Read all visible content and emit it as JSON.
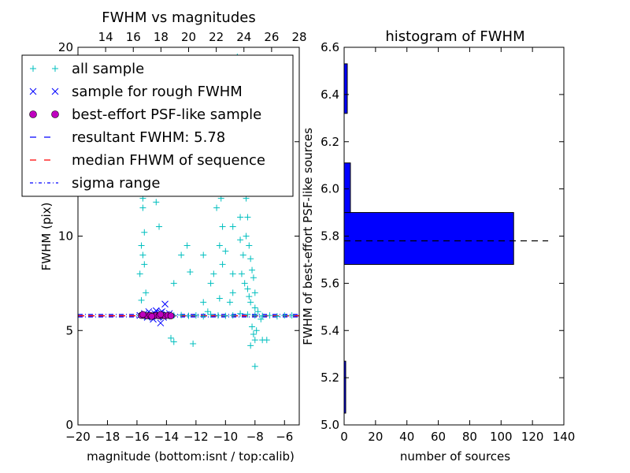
{
  "chart_data": [
    {
      "type": "scatter",
      "title": "FWHM vs magnitudes",
      "xlabel": "magnitude (bottom:isnt / top:calib)",
      "ylabel": "FWHM (pix)",
      "xlim": [
        -20,
        -5
      ],
      "ylim": [
        0,
        20
      ],
      "xticks": [
        -20,
        -18,
        -16,
        -14,
        -12,
        -10,
        -8,
        -6
      ],
      "xtick_labels": [
        "−20",
        "−18",
        "−16",
        "−14",
        "−12",
        "−10",
        "−8",
        "−6"
      ],
      "yticks": [
        0,
        5,
        10,
        15,
        20
      ],
      "ytick_labels": [
        "0",
        "5",
        "10",
        "15",
        "20"
      ],
      "top_xlim": [
        12,
        28
      ],
      "top_xticks": [
        14,
        16,
        18,
        20,
        22,
        24,
        26,
        28
      ],
      "top_xtick_labels": [
        "14",
        "16",
        "18",
        "20",
        "22",
        "24",
        "26",
        "28"
      ],
      "grid": false,
      "legend_placement": "upper-left",
      "legend": [
        {
          "label": "all sample",
          "marker": "+",
          "color": "#00bfbf"
        },
        {
          "label": "sample for rough FWHM",
          "marker": "x",
          "color": "#0000ff"
        },
        {
          "label": "best-effort PSF-like sample",
          "marker": "o",
          "color": "#bf00bf"
        },
        {
          "label": "resultant FWHM: 5.78",
          "marker": "dashed",
          "color": "#0000ff"
        },
        {
          "label": "median FHWM of sequence",
          "marker": "dashed",
          "color": "#ff0000"
        },
        {
          "label": "sigma range",
          "marker": "dashdot",
          "color": "#0000ff"
        }
      ],
      "series": [
        {
          "name": "all sample",
          "color": "#00bfbf",
          "points": [
            [
              -15.8,
              5.8
            ],
            [
              -15.5,
              5.75
            ],
            [
              -15.2,
              5.8
            ],
            [
              -14.8,
              5.85
            ],
            [
              -14.5,
              5.78
            ],
            [
              -14.2,
              5.8
            ],
            [
              -13.8,
              5.75
            ],
            [
              -13.5,
              5.8
            ],
            [
              -13.0,
              5.82
            ],
            [
              -12.5,
              5.78
            ],
            [
              -12.0,
              5.8
            ],
            [
              -11.5,
              5.75
            ],
            [
              -11.0,
              5.85
            ],
            [
              -10.5,
              5.8
            ],
            [
              -10.0,
              5.78
            ],
            [
              -9.5,
              5.8
            ],
            [
              -9.0,
              5.9
            ],
            [
              -8.5,
              5.85
            ],
            [
              -8.0,
              5.8
            ],
            [
              -7.5,
              5.78
            ],
            [
              -7.0,
              5.8
            ],
            [
              -6.5,
              5.75
            ],
            [
              -6.0,
              5.8
            ],
            [
              -5.5,
              5.8
            ],
            [
              -15.8,
              8.0
            ],
            [
              -15.7,
              9.5
            ],
            [
              -15.6,
              11.5
            ],
            [
              -15.7,
              12.5
            ],
            [
              -15.5,
              13.2
            ],
            [
              -15.6,
              14.5
            ],
            [
              -15.6,
              16.0
            ],
            [
              -15.4,
              7.0
            ],
            [
              -15.5,
              10.2
            ],
            [
              -15.7,
              6.6
            ],
            [
              -15.6,
              9.0
            ],
            [
              -15.5,
              8.5
            ],
            [
              -15.6,
              12.0
            ],
            [
              -14.5,
              12.5
            ],
            [
              -14.3,
              15.3
            ],
            [
              -14.6,
              13.5
            ],
            [
              -14.4,
              14.5
            ],
            [
              -14.4,
              16.5
            ],
            [
              -14.5,
              10.5
            ],
            [
              -14.7,
              11.8
            ],
            [
              -13.7,
              4.6
            ],
            [
              -13.5,
              4.4
            ],
            [
              -12.2,
              4.3
            ],
            [
              -12.6,
              9.5
            ],
            [
              -13.0,
              9.0
            ],
            [
              -11.5,
              9.0
            ],
            [
              -10.6,
              15.0
            ],
            [
              -10.5,
              13.0
            ],
            [
              -10.3,
              12.0
            ],
            [
              -10.6,
              11.5
            ],
            [
              -10.2,
              10.5
            ],
            [
              -10.4,
              9.5
            ],
            [
              -10.0,
              9.2
            ],
            [
              -10.2,
              8.5
            ],
            [
              -9.5,
              8.0
            ],
            [
              -9.5,
              10.5
            ],
            [
              -9.6,
              12.5
            ],
            [
              -9.3,
              14.0
            ],
            [
              -9.5,
              15.5
            ],
            [
              -9.4,
              17.0
            ],
            [
              -9.2,
              19.5
            ],
            [
              -9.0,
              11.0
            ],
            [
              -9.0,
              9.8
            ],
            [
              -8.8,
              9.0
            ],
            [
              -8.9,
              8.0
            ],
            [
              -8.7,
              7.5
            ],
            [
              -8.5,
              7.2
            ],
            [
              -8.4,
              6.8
            ],
            [
              -8.3,
              6.5
            ],
            [
              -8.6,
              10.0
            ],
            [
              -8.5,
              11.0
            ],
            [
              -8.6,
              12.0
            ],
            [
              -8.7,
              13.0
            ],
            [
              -8.8,
              14.0
            ],
            [
              -8.9,
              15.0
            ],
            [
              -8.9,
              16.0
            ],
            [
              -8.4,
              9.5
            ],
            [
              -8.3,
              8.8
            ],
            [
              -8.2,
              8.2
            ],
            [
              -8.1,
              7.8
            ],
            [
              -8.0,
              7.0
            ],
            [
              -8.0,
              6.2
            ],
            [
              -7.8,
              6.0
            ],
            [
              -7.6,
              5.6
            ],
            [
              -8.2,
              5.2
            ],
            [
              -8.1,
              4.8
            ],
            [
              -8.0,
              4.5
            ],
            [
              -7.9,
              5.0
            ],
            [
              -8.3,
              4.2
            ],
            [
              -8.0,
              3.1
            ],
            [
              -7.2,
              4.5
            ],
            [
              -7.5,
              4.5
            ],
            [
              -11.0,
              7.5
            ],
            [
              -10.8,
              8.0
            ],
            [
              -11.5,
              6.5
            ],
            [
              -12.4,
              8.1
            ],
            [
              -11.2,
              6.0
            ],
            [
              -9.7,
              6.5
            ],
            [
              -9.5,
              7.0
            ],
            [
              -10.4,
              6.7
            ],
            [
              -13.5,
              7.5
            ],
            [
              -9.1,
              16.5
            ],
            [
              -8.9,
              17.5
            ],
            [
              -8.5,
              18.5
            ],
            [
              -8.8,
              14.5
            ],
            [
              -9.2,
              13.0
            ]
          ]
        },
        {
          "name": "sample for rough FWHM",
          "color": "#0000ff",
          "points": [
            [
              -15.8,
              5.8
            ],
            [
              -15.5,
              5.9
            ],
            [
              -15.3,
              5.7
            ],
            [
              -15.0,
              5.85
            ],
            [
              -14.8,
              5.9
            ],
            [
              -14.6,
              5.75
            ],
            [
              -14.5,
              5.8
            ],
            [
              -14.4,
              5.95
            ],
            [
              -14.2,
              5.7
            ],
            [
              -14.0,
              5.85
            ],
            [
              -13.9,
              5.8
            ],
            [
              -13.8,
              5.9
            ],
            [
              -14.1,
              6.4
            ],
            [
              -14.4,
              5.4
            ],
            [
              -14.9,
              5.6
            ],
            [
              -15.2,
              6.0
            ],
            [
              -14.7,
              6.05
            ],
            [
              -14.3,
              6.0
            ]
          ]
        },
        {
          "name": "best-effort PSF-like sample",
          "color": "#bf00bf",
          "points": [
            [
              -15.7,
              5.8
            ],
            [
              -15.5,
              5.8
            ],
            [
              -15.3,
              5.78
            ],
            [
              -15.1,
              5.8
            ],
            [
              -14.9,
              5.78
            ],
            [
              -14.7,
              5.8
            ],
            [
              -14.5,
              5.78
            ],
            [
              -14.3,
              5.8
            ],
            [
              -14.1,
              5.78
            ],
            [
              -13.9,
              5.8
            ],
            [
              -13.7,
              5.78
            ],
            [
              -15.6,
              5.85
            ],
            [
              -15.0,
              5.75
            ],
            [
              -14.4,
              5.85
            ]
          ]
        }
      ],
      "reference_lines": [
        {
          "name": "resultant FWHM: 5.78",
          "y": 5.78,
          "style": "dashed",
          "color": "#0000ff"
        },
        {
          "name": "median FHWM of sequence",
          "y": 5.78,
          "style": "dashed",
          "color": "#ff0000"
        },
        {
          "name": "sigma range",
          "y": 5.72,
          "style": "dashdot",
          "color": "#0000ff"
        },
        {
          "name": "sigma range",
          "y": 5.85,
          "style": "dashdot",
          "color": "#0000ff"
        }
      ]
    },
    {
      "type": "bar",
      "orientation": "horizontal",
      "title": "histogram of FWHM",
      "xlabel": "number of sources",
      "ylabel": "FWHM of best-effort PSF-like sources",
      "xlim": [
        0,
        140
      ],
      "ylim": [
        5.0,
        6.6
      ],
      "xticks": [
        0,
        20,
        40,
        60,
        80,
        100,
        120,
        140
      ],
      "xtick_labels": [
        "0",
        "20",
        "40",
        "60",
        "80",
        "100",
        "120",
        "140"
      ],
      "yticks": [
        5.0,
        5.2,
        5.4,
        5.6,
        5.8,
        6.0,
        6.2,
        6.4,
        6.6
      ],
      "ytick_labels": [
        "5.0",
        "5.2",
        "5.4",
        "5.6",
        "5.8",
        "6.0",
        "6.2",
        "6.4",
        "6.6"
      ],
      "grid": false,
      "bar_color": "#0000ff",
      "bins": [
        {
          "y0": 5.05,
          "y1": 5.27,
          "count": 1
        },
        {
          "y0": 5.27,
          "y1": 5.47,
          "count": 0
        },
        {
          "y0": 5.47,
          "y1": 5.68,
          "count": 0
        },
        {
          "y0": 5.68,
          "y1": 5.9,
          "count": 108
        },
        {
          "y0": 5.9,
          "y1": 6.11,
          "count": 4
        },
        {
          "y0": 6.11,
          "y1": 6.32,
          "count": 0
        },
        {
          "y0": 6.32,
          "y1": 6.53,
          "count": 2
        }
      ],
      "reference_line": {
        "y": 5.78,
        "x_end": 130,
        "style": "dashed",
        "color": "#000000"
      }
    }
  ]
}
